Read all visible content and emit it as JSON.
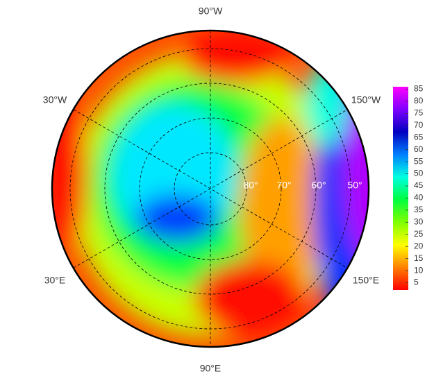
{
  "map": {
    "longitude_labels": [
      "90°W",
      "30°W",
      "150°W",
      "30°E",
      "150°E",
      "90°E"
    ],
    "latitude_labels": [
      "80°",
      "70°",
      "60°",
      "50°"
    ]
  },
  "colorbar": {
    "range": [
      2,
      86
    ],
    "ticks": [
      5,
      10,
      15,
      20,
      25,
      30,
      35,
      40,
      45,
      50,
      55,
      60,
      65,
      70,
      75,
      80,
      85
    ],
    "colors": [
      "#ff0000",
      "#ff8000",
      "#ffff00",
      "#80ff00",
      "#00ff40",
      "#00ffe0",
      "#0080ff",
      "#0000c0",
      "#8000ff",
      "#ff00ff"
    ]
  }
}
